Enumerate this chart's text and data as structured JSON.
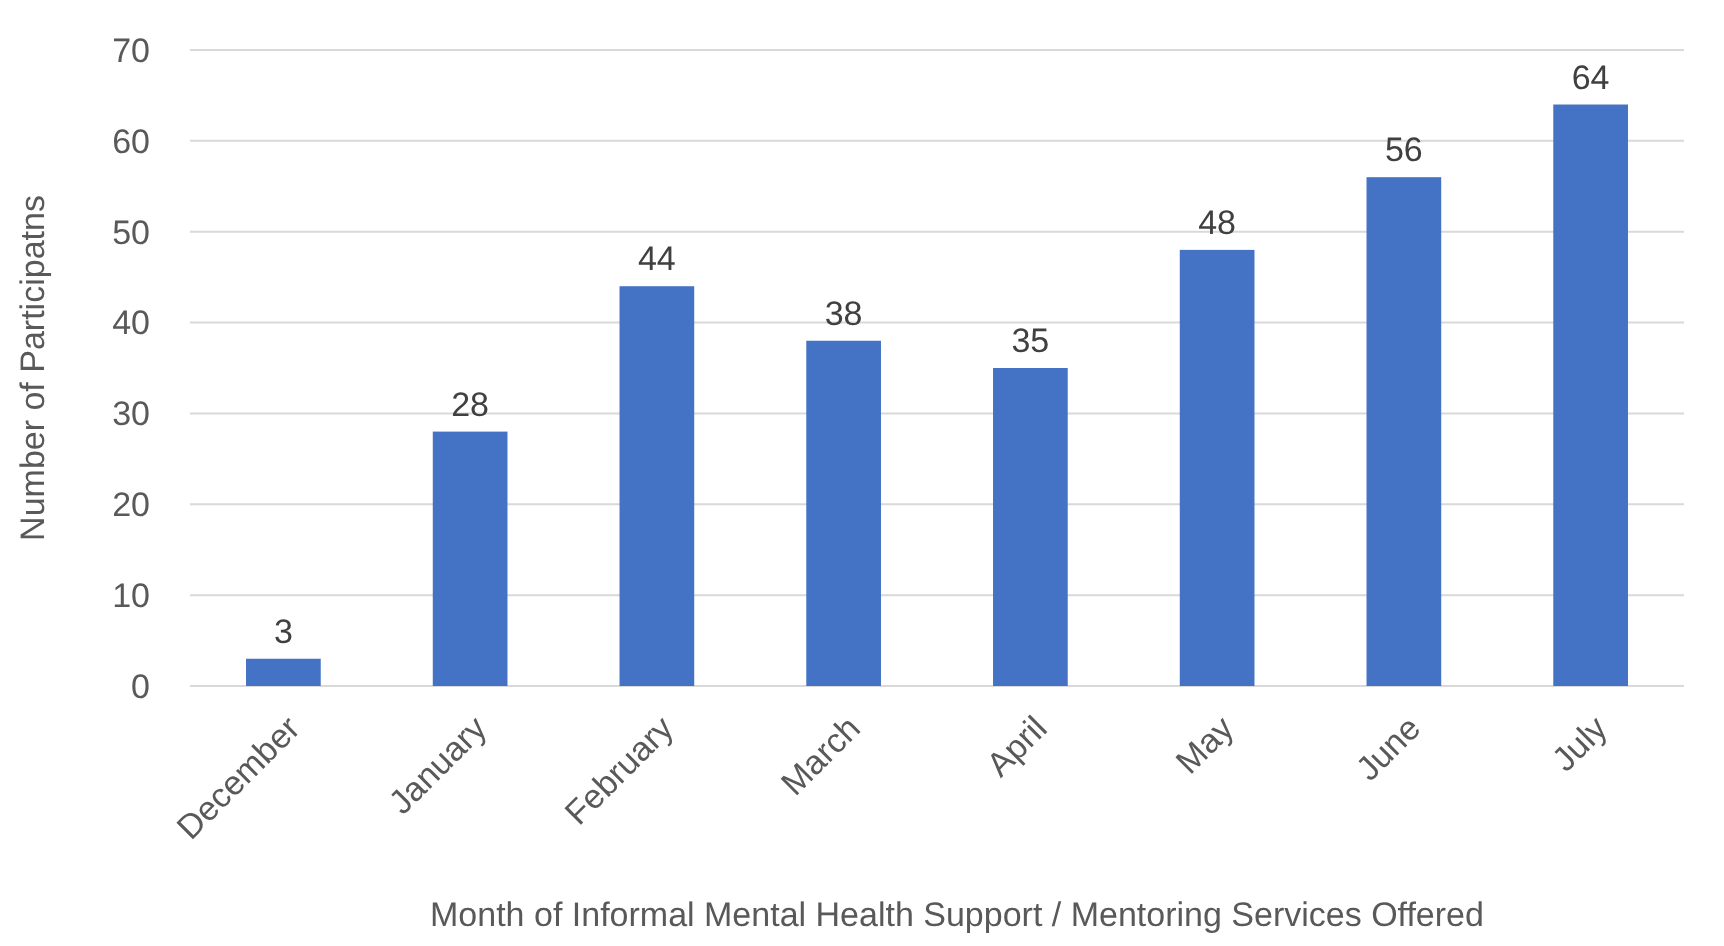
{
  "chart_data": {
    "type": "bar",
    "xlabel": "Month of Informal Mental Health Support / Mentoring Services Offered",
    "ylabel": "Number of Participatns",
    "categories": [
      "December",
      "January",
      "February",
      "March",
      "April",
      "May",
      "June",
      "July"
    ],
    "values": [
      3,
      28,
      44,
      38,
      35,
      48,
      56,
      64
    ],
    "color": "#4472c4",
    "ylim": [
      0,
      70
    ],
    "yticks": [
      0,
      10,
      20,
      30,
      40,
      50,
      60,
      70
    ],
    "grid": "y",
    "data_labels": true
  }
}
